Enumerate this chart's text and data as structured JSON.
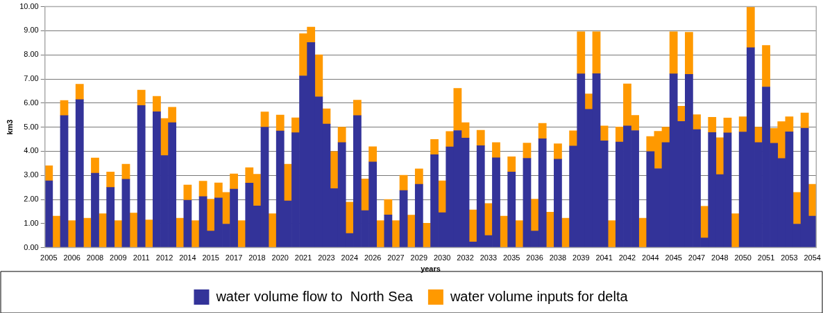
{
  "chart_data": {
    "type": "bar",
    "xlabel": "years",
    "ylabel": "km3",
    "categories": [
      "2005",
      null,
      null,
      "2006",
      null,
      null,
      "2008",
      null,
      null,
      "2009",
      null,
      null,
      "2011",
      null,
      null,
      "2012",
      null,
      null,
      "2014",
      null,
      null,
      "2015",
      null,
      null,
      "2017",
      null,
      null,
      "2018",
      null,
      null,
      "2020",
      null,
      null,
      "2021",
      null,
      null,
      "2023",
      null,
      null,
      "2024",
      null,
      null,
      "2026",
      null,
      null,
      "2027",
      null,
      null,
      "2029",
      null,
      null,
      "2030",
      null,
      null,
      "2032",
      null,
      null,
      "2033",
      null,
      null,
      "2035",
      null,
      null,
      "2036",
      null,
      null,
      "2038",
      null,
      null,
      "2039",
      null,
      null,
      "2041",
      null,
      null,
      "2042",
      null,
      null,
      "2044",
      null,
      null,
      "2045",
      null,
      null,
      "2047",
      null,
      null,
      "2048",
      null,
      null,
      "2050",
      null,
      null,
      "2051",
      null,
      null,
      "2053",
      null,
      null,
      "2054"
    ],
    "series": [
      {
        "name": "water volume flow to  North Sea",
        "color": "#333399",
        "values": [
          2.77,
          null,
          5.48,
          null,
          6.14,
          null,
          3.09,
          null,
          2.5,
          null,
          2.84,
          null,
          5.9,
          null,
          5.64,
          3.82,
          5.19,
          null,
          1.97,
          null,
          2.12,
          0.69,
          2.06,
          0.98,
          2.43,
          null,
          2.68,
          1.73,
          5.0,
          null,
          4.84,
          1.94,
          4.77,
          7.13,
          8.51,
          6.26,
          5.13,
          2.45,
          4.36,
          0.59,
          5.48,
          1.54,
          3.56,
          null,
          1.36,
          null,
          2.37,
          null,
          2.63,
          null,
          3.86,
          1.45,
          4.18,
          4.86,
          4.55,
          0.24,
          4.23,
          0.5,
          3.73,
          null,
          3.14,
          null,
          3.71,
          0.69,
          4.52,
          null,
          3.67,
          null,
          4.22,
          7.21,
          5.74,
          7.22,
          4.43,
          null,
          4.38,
          5.05,
          4.86,
          null,
          3.99,
          3.28,
          4.36,
          7.21,
          5.24,
          7.19,
          4.9,
          0.4,
          4.78,
          3.03,
          4.76,
          null,
          4.8,
          8.3,
          4.36,
          6.67,
          4.33,
          3.7,
          4.81,
          0.98,
          4.96,
          1.31
        ]
      },
      {
        "name": "water volume inputs for delta",
        "color": "#ff9900",
        "values": [
          0.63,
          1.31,
          0.63,
          1.12,
          0.64,
          1.22,
          0.63,
          1.41,
          0.64,
          1.12,
          0.62,
          1.44,
          0.64,
          1.15,
          0.64,
          1.54,
          0.64,
          1.22,
          0.63,
          1.12,
          0.64,
          1.32,
          0.63,
          1.31,
          0.63,
          1.12,
          0.64,
          1.32,
          0.63,
          1.41,
          0.66,
          1.52,
          0.62,
          1.75,
          0.64,
          1.74,
          0.63,
          1.54,
          0.64,
          1.3,
          0.64,
          1.31,
          0.63,
          1.12,
          0.64,
          1.12,
          0.63,
          1.35,
          0.64,
          1.01,
          0.63,
          1.32,
          0.64,
          1.75,
          0.64,
          1.33,
          0.64,
          1.33,
          0.63,
          1.31,
          0.63,
          1.12,
          0.63,
          1.32,
          0.64,
          1.47,
          0.64,
          1.22,
          0.63,
          1.75,
          0.64,
          1.74,
          0.62,
          1.12,
          0.63,
          1.75,
          0.63,
          1.22,
          0.62,
          1.55,
          0.64,
          1.75,
          0.63,
          1.75,
          0.62,
          1.32,
          0.63,
          1.53,
          0.62,
          1.41,
          0.63,
          1.7,
          0.64,
          1.72,
          0.62,
          1.53,
          0.62,
          1.31,
          0.63,
          1.32
        ]
      }
    ],
    "stacked": true,
    "ylim": [
      0,
      10
    ],
    "yticks": [
      {
        "value": 0,
        "label": "0.00"
      },
      {
        "value": 1,
        "label": "1.00"
      },
      {
        "value": 2,
        "label": "2.00"
      },
      {
        "value": 3,
        "label": "3.00"
      },
      {
        "value": 4,
        "label": "4.00"
      },
      {
        "value": 5,
        "label": "5.00"
      },
      {
        "value": 6,
        "label": "6.00"
      },
      {
        "value": 7,
        "label": "7.00"
      },
      {
        "value": 8,
        "label": "8.00"
      },
      {
        "value": 9,
        "label": "9.00"
      },
      {
        "value": 10,
        "label": "10.00"
      }
    ],
    "grid": "y",
    "legend": "bottom"
  }
}
